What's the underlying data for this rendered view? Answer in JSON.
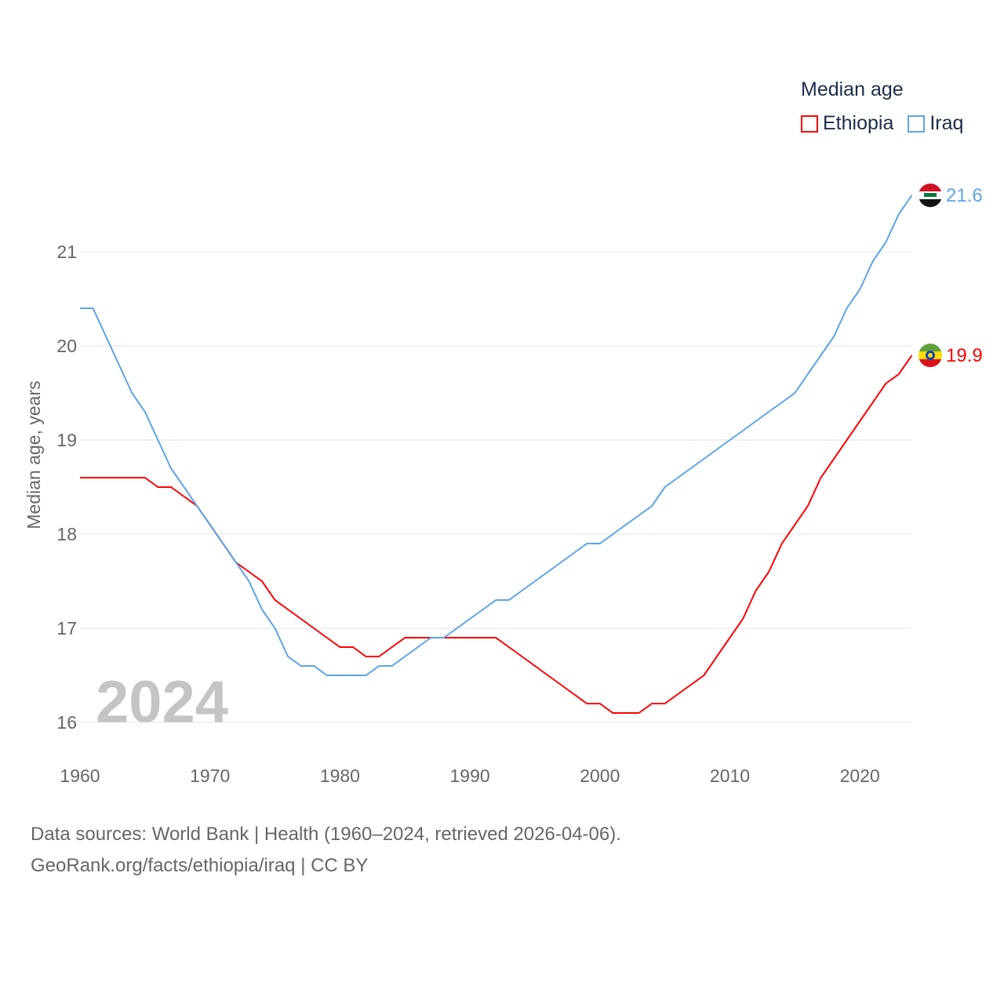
{
  "chart_data": {
    "type": "line",
    "title": "",
    "xlabel": "",
    "ylabel": "Median age, years",
    "xlim": [
      1960,
      2024
    ],
    "ylim": [
      15.7,
      21.8
    ],
    "yticks": [
      16,
      17,
      18,
      19,
      20,
      21
    ],
    "xticks": [
      1960,
      1970,
      1980,
      1990,
      2000,
      2010,
      2020
    ],
    "grid": true,
    "year_watermark": "2024",
    "legend_title": "Median age",
    "legend_position": "top-right",
    "x": [
      1960,
      1961,
      1962,
      1963,
      1964,
      1965,
      1966,
      1967,
      1968,
      1969,
      1970,
      1971,
      1972,
      1973,
      1974,
      1975,
      1976,
      1977,
      1978,
      1979,
      1980,
      1981,
      1982,
      1983,
      1984,
      1985,
      1986,
      1987,
      1988,
      1989,
      1990,
      1991,
      1992,
      1993,
      1994,
      1995,
      1996,
      1997,
      1998,
      1999,
      2000,
      2001,
      2002,
      2003,
      2004,
      2005,
      2006,
      2007,
      2008,
      2009,
      2010,
      2011,
      2012,
      2013,
      2014,
      2015,
      2016,
      2017,
      2018,
      2019,
      2020,
      2021,
      2022,
      2023,
      2024
    ],
    "series": [
      {
        "name": "Ethiopia",
        "color": "#ff0000",
        "end_label": "19.9",
        "values": [
          18.6,
          18.6,
          18.6,
          18.6,
          18.6,
          18.6,
          18.5,
          18.5,
          18.4,
          18.3,
          18.1,
          17.9,
          17.7,
          17.6,
          17.5,
          17.3,
          17.2,
          17.1,
          17.0,
          16.9,
          16.8,
          16.8,
          16.7,
          16.7,
          16.8,
          16.9,
          16.9,
          16.9,
          16.9,
          16.9,
          16.9,
          16.9,
          16.9,
          16.8,
          16.7,
          16.6,
          16.5,
          16.4,
          16.3,
          16.2,
          16.2,
          16.1,
          16.1,
          16.1,
          16.2,
          16.2,
          16.3,
          16.4,
          16.5,
          16.7,
          16.9,
          17.1,
          17.4,
          17.6,
          17.9,
          18.1,
          18.3,
          18.6,
          18.8,
          19.0,
          19.2,
          19.4,
          19.6,
          19.7,
          19.9
        ]
      },
      {
        "name": "Iraq",
        "color": "#5ba4ea",
        "end_label": "21.6",
        "values": [
          20.4,
          20.4,
          20.1,
          19.8,
          19.5,
          19.3,
          19.0,
          18.7,
          18.5,
          18.3,
          18.1,
          17.9,
          17.7,
          17.5,
          17.2,
          17.0,
          16.7,
          16.6,
          16.6,
          16.5,
          16.5,
          16.5,
          16.5,
          16.6,
          16.6,
          16.7,
          16.8,
          16.9,
          16.9,
          17.0,
          17.1,
          17.2,
          17.3,
          17.3,
          17.4,
          17.5,
          17.6,
          17.7,
          17.8,
          17.9,
          17.9,
          18.0,
          18.1,
          18.2,
          18.3,
          18.5,
          18.6,
          18.7,
          18.8,
          18.9,
          19.0,
          19.1,
          19.2,
          19.3,
          19.4,
          19.5,
          19.7,
          19.9,
          20.1,
          20.4,
          20.6,
          20.9,
          21.1,
          21.4,
          21.6
        ]
      }
    ]
  },
  "footer": {
    "line1": "Data sources: World Bank | Health (1960–2024, retrieved 2026-04-06).",
    "line2": "GeoRank.org/facts/ethiopia/iraq | CC BY"
  }
}
